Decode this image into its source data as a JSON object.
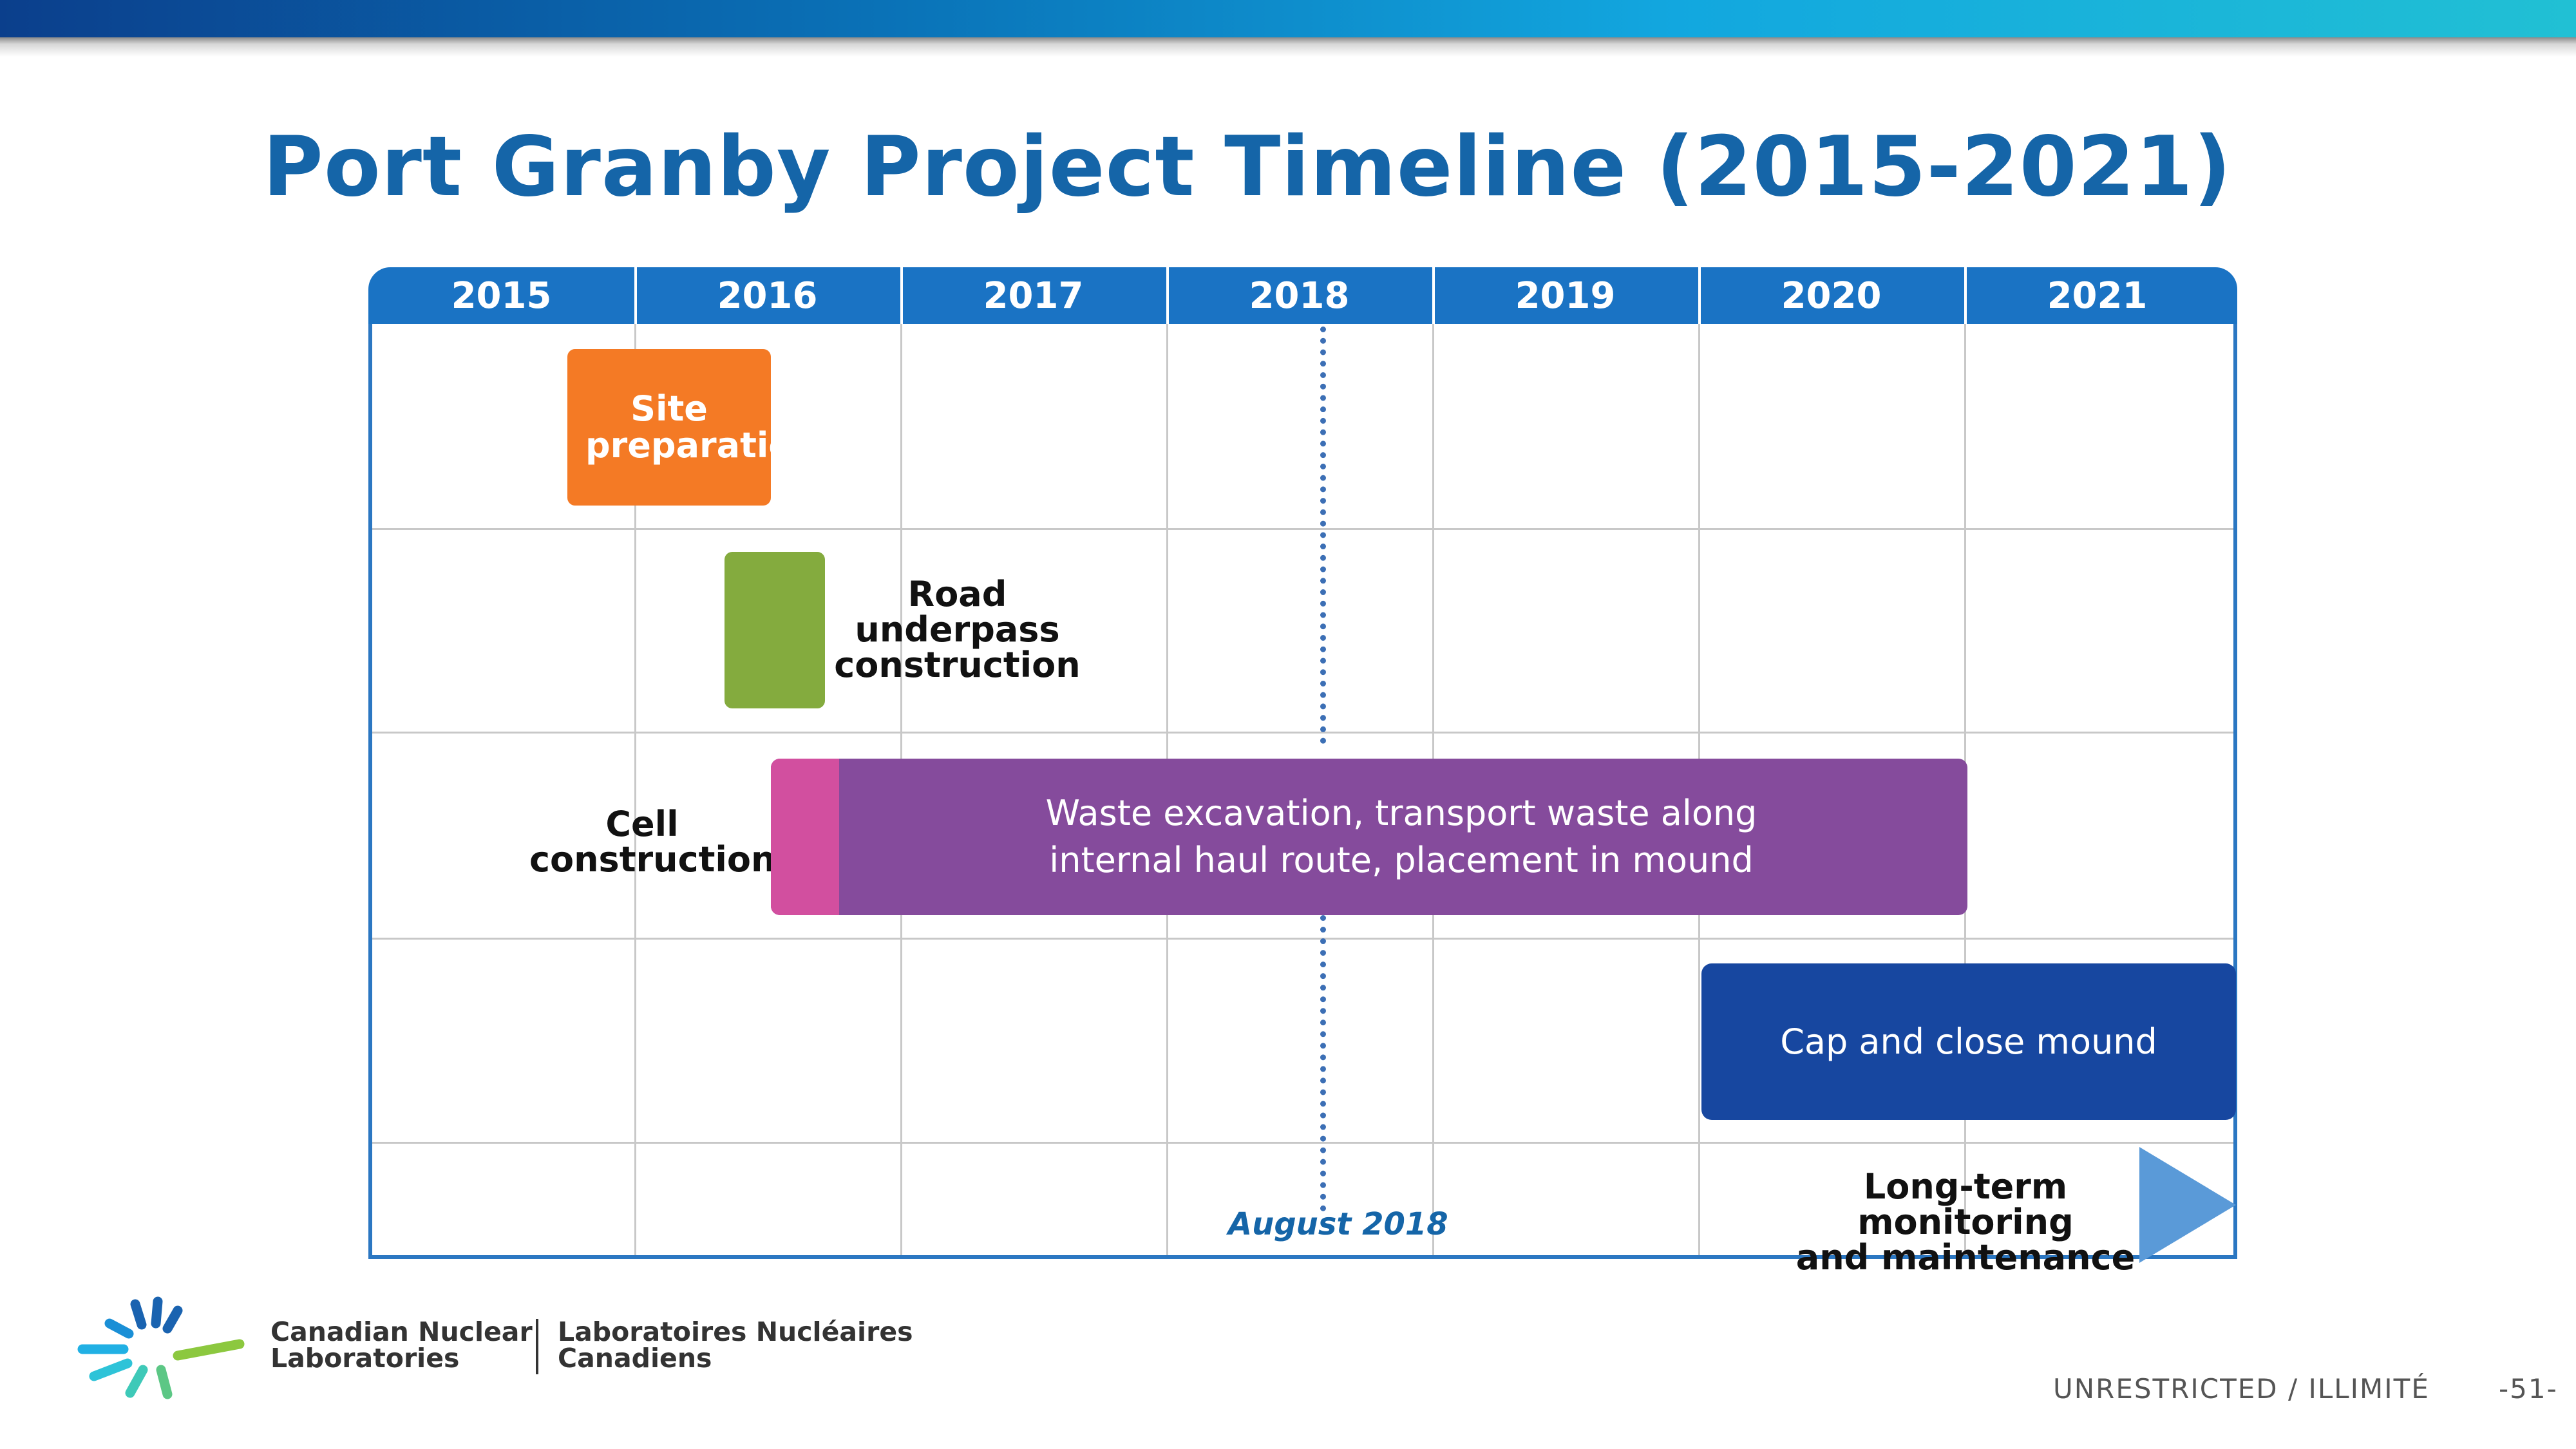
{
  "title": "Port Granby Project Timeline (2015-2021)",
  "years": [
    "2015",
    "2016",
    "2017",
    "2018",
    "2019",
    "2020",
    "2021"
  ],
  "tasks": {
    "site_preparation": "Site preparation",
    "road_underpass": [
      "Road",
      "underpass",
      "construction"
    ],
    "cell_construction": [
      "Cell",
      "construction"
    ],
    "waste_excavation": [
      "Waste excavation, transport waste along",
      "internal haul route, placement in mound"
    ],
    "cap_close": "Cap and close mound",
    "long_term": [
      "Long-term monitoring",
      "and maintenance"
    ]
  },
  "marker_label": "August 2018",
  "colors": {
    "header": "#1a73c4",
    "site_preparation": "#f47a25",
    "road_underpass": "#84ab3e",
    "cell_construction": "#d24f9f",
    "waste_excavation": "#854b9c",
    "cap_close": "#1747a0",
    "arrow": "#5a9ad8"
  },
  "footer": {
    "org_en": [
      "Canadian Nuclear",
      "Laboratories"
    ],
    "org_fr": [
      "Laboratoires Nucléaires",
      "Canadiens"
    ],
    "classification": "UNRESTRICTED / ILLIMITÉ",
    "page_number": "-51-"
  }
}
